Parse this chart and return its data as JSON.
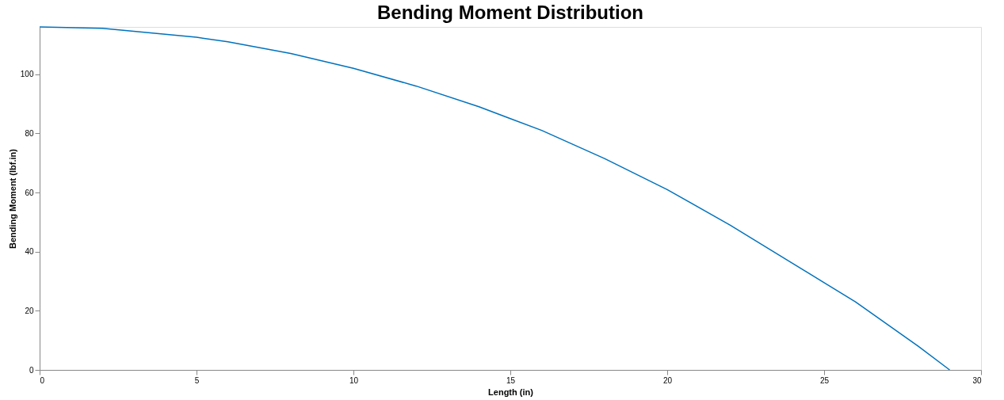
{
  "chart_data": {
    "type": "line",
    "title": "Bending Moment Distribution",
    "xlabel": "Length (in)",
    "ylabel": "Bending Moment (lbf.in)",
    "series": [
      {
        "color": "#0072bd",
        "x": [
          0,
          2,
          4,
          5,
          6,
          8,
          10,
          12,
          14,
          15,
          16,
          18,
          20,
          22,
          24,
          25,
          26,
          28,
          29
        ],
        "values": [
          116,
          115.5,
          113.5,
          112.5,
          111,
          107,
          102,
          96,
          89,
          85,
          81,
          71.5,
          61,
          49,
          36,
          29.5,
          23,
          8,
          0
        ]
      }
    ],
    "xlim": [
      0,
      30
    ],
    "ylim": [
      0,
      116
    ],
    "xticks": [
      0,
      5,
      10,
      15,
      20,
      25,
      30
    ],
    "yticks": [
      0,
      20,
      40,
      60,
      80,
      100
    ],
    "grid": false,
    "legend": false,
    "marker": "none",
    "line_style": "solid"
  }
}
